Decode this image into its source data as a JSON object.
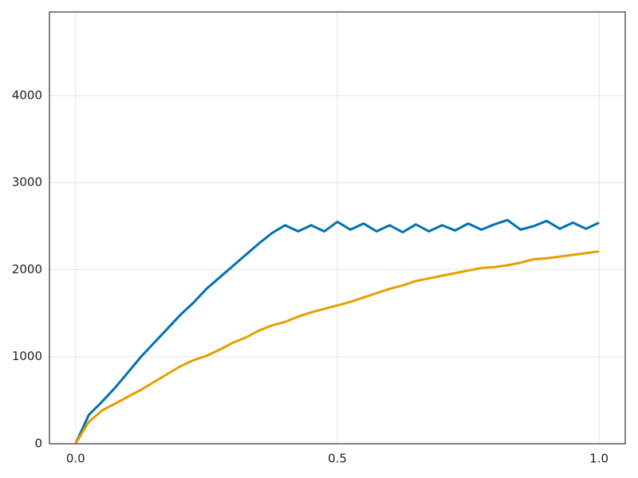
{
  "chart_data": {
    "type": "line",
    "x": [
      0,
      0.025,
      0.05,
      0.075,
      0.1,
      0.125,
      0.15,
      0.175,
      0.2,
      0.225,
      0.25,
      0.275,
      0.3,
      0.325,
      0.35,
      0.375,
      0.4,
      0.425,
      0.45,
      0.475,
      0.5,
      0.525,
      0.55,
      0.575,
      0.6,
      0.625,
      0.65,
      0.675,
      0.7,
      0.725,
      0.75,
      0.775,
      0.8,
      0.825,
      0.85,
      0.875,
      0.9,
      0.925,
      0.95,
      0.975,
      1.0
    ],
    "series": [
      {
        "color": "#0072b2",
        "values": [
          0,
          330,
          480,
          640,
          820,
          1000,
          1160,
          1320,
          1480,
          1620,
          1780,
          1910,
          2040,
          2170,
          2300,
          2420,
          2510,
          2440,
          2510,
          2440,
          2550,
          2460,
          2530,
          2440,
          2510,
          2430,
          2520,
          2440,
          2510,
          2450,
          2530,
          2460,
          2520,
          2570,
          2460,
          2500,
          2560,
          2470,
          2540,
          2470,
          2540
        ]
      },
      {
        "color": "#e69f00",
        "values": [
          0,
          250,
          380,
          460,
          540,
          620,
          710,
          800,
          890,
          960,
          1010,
          1080,
          1160,
          1220,
          1300,
          1360,
          1400,
          1460,
          1510,
          1550,
          1590,
          1630,
          1680,
          1730,
          1780,
          1820,
          1870,
          1900,
          1930,
          1960,
          1990,
          2020,
          2030,
          2050,
          2080,
          2120,
          2130,
          2150,
          2170,
          2190,
          2210
        ]
      }
    ],
    "xlim": [
      -0.05,
      1.05
    ],
    "ylim": [
      0,
      4961
    ],
    "xticks": [
      {
        "value": 0,
        "label": "0.0"
      },
      0.5,
      {
        "value": 1,
        "label": "1.0"
      }
    ],
    "yticks": [
      0,
      1000,
      2000,
      3000,
      4000
    ],
    "grid": true
  }
}
